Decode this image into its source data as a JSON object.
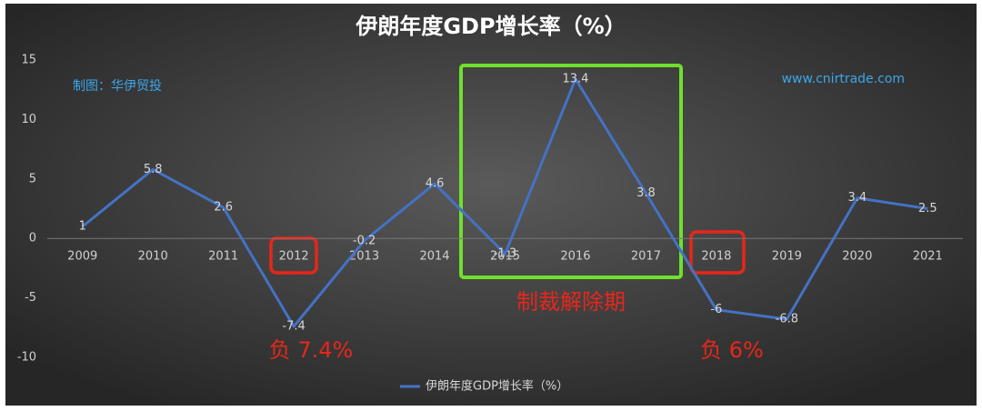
{
  "chart_data": {
    "type": "line",
    "title": "伊朗年度GDP增长率（%）",
    "categories": [
      "2009",
      "2010",
      "2011",
      "2012",
      "2013",
      "2014",
      "2015",
      "2016",
      "2017",
      "2018",
      "2019",
      "2020",
      "2021"
    ],
    "series": [
      {
        "name": "伊朗年度GDP增长率（%）",
        "color": "#4472c4",
        "values": [
          1,
          5.8,
          2.6,
          -7.4,
          -0.2,
          4.6,
          -1.3,
          13.4,
          3.8,
          -6,
          -6.8,
          3.4,
          2.5
        ]
      }
    ],
    "ylim": [
      -10,
      15
    ],
    "yticks": [
      -10,
      -5,
      0,
      5,
      10,
      15
    ],
    "grid": false,
    "legend": "bottom",
    "annotations": [
      "制图：华伊贸投",
      "www.cnirtrade.com",
      "制裁解除期",
      "负 7.4%",
      "负 6%"
    ]
  }
}
